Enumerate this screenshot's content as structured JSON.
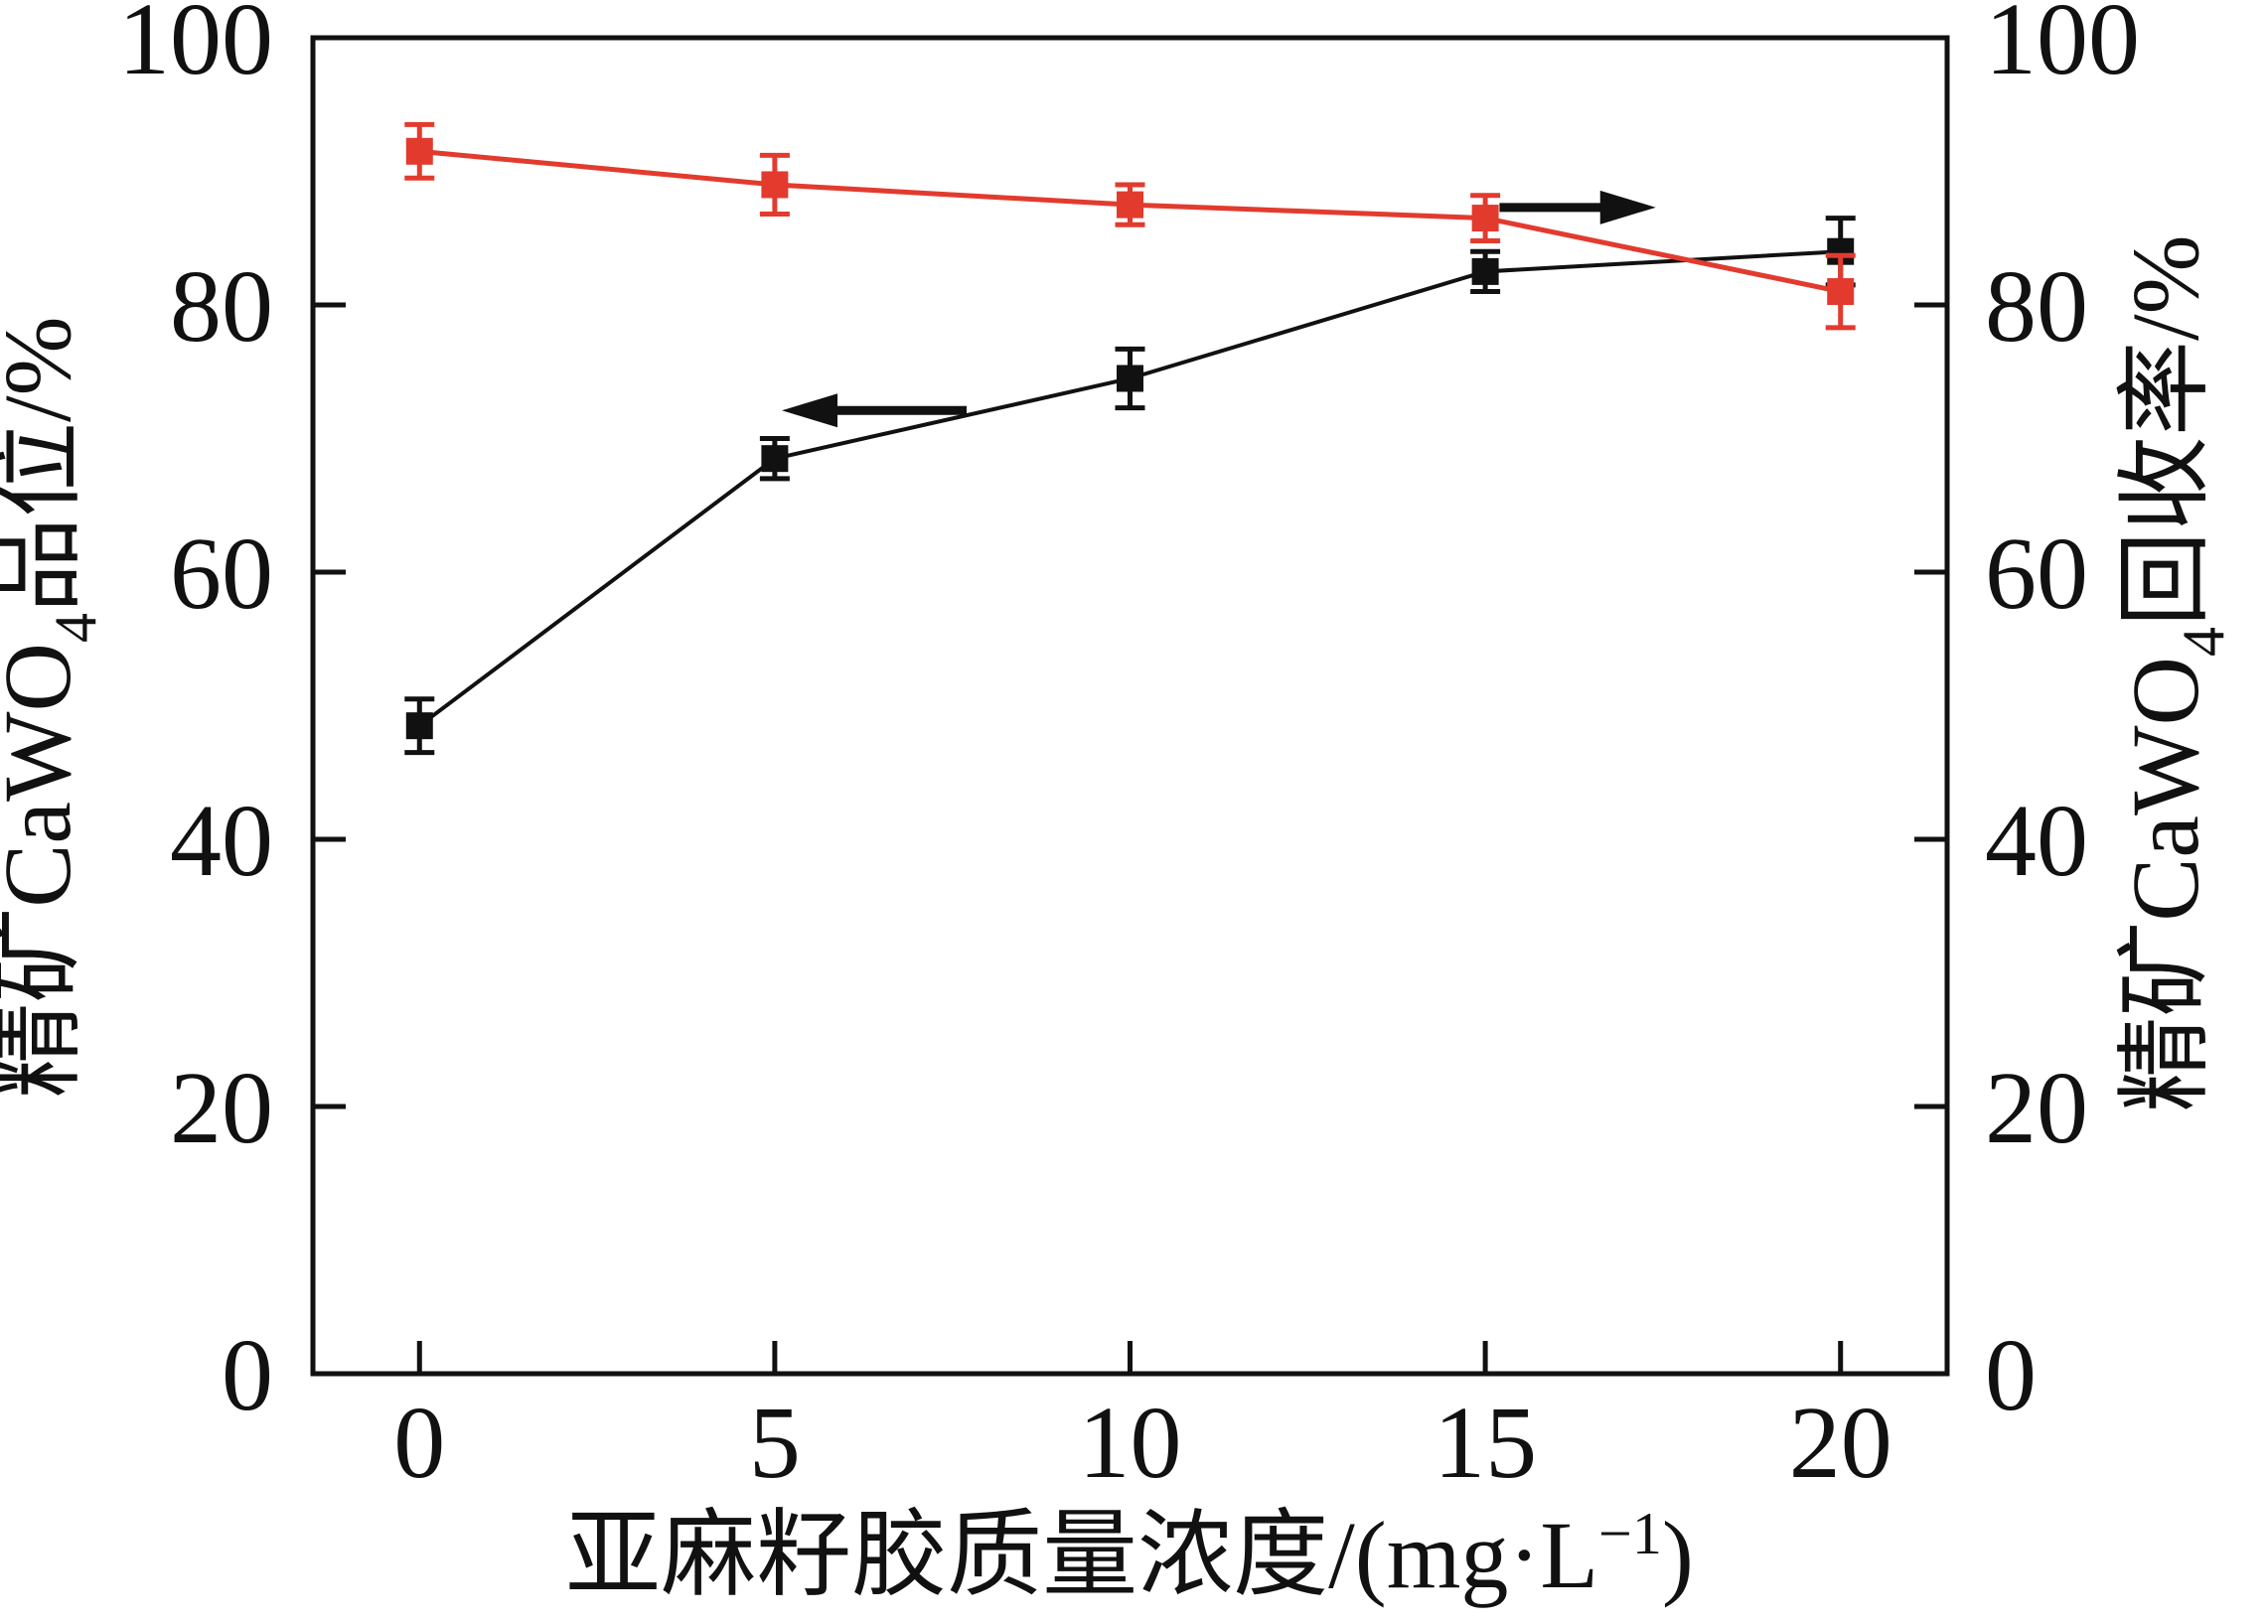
{
  "figure": {
    "background": "#ffffff",
    "frame_color": "#111111"
  },
  "chart_data": {
    "type": "line",
    "title": "",
    "grid": false,
    "legend": "none",
    "xlabel": "亚麻籽胶质量浓度/(mg·L⁻¹)",
    "xlabel_parts": [
      {
        "t": "亚麻籽胶质量浓度/(mg·L"
      },
      {
        "t": "−1",
        "shift": "sup"
      },
      {
        "t": ")"
      }
    ],
    "xlim": [
      -1.5,
      21.5
    ],
    "ylim": [
      0,
      100
    ],
    "x_ticks": [
      0,
      5,
      10,
      15,
      20
    ],
    "y_ticks": [
      0,
      20,
      40,
      60,
      80,
      100
    ],
    "left_axis": {
      "label": "精矿CaWO₄品位/%",
      "label_parts": [
        {
          "t": "精矿CaWO"
        },
        {
          "t": "4",
          "shift": "sub"
        },
        {
          "t": "品位/%"
        }
      ],
      "range": [
        0,
        100
      ]
    },
    "right_axis": {
      "label": "精矿CaWO₄回收率/%",
      "label_parts": [
        {
          "t": "精矿CaWO"
        },
        {
          "t": "4",
          "shift": "sub"
        },
        {
          "t": "回收率/%"
        }
      ],
      "range": [
        0,
        100
      ]
    },
    "series": [
      {
        "name": "精矿CaWO₄品位",
        "axis": "left",
        "color": "#111111",
        "marker": "filled-square",
        "x": [
          0,
          5,
          10,
          15,
          20
        ],
        "values": [
          48.5,
          68.5,
          74.5,
          82.5,
          84.0
        ],
        "errors": [
          2.0,
          1.5,
          2.2,
          1.5,
          2.5
        ]
      },
      {
        "name": "精矿CaWO₄回收率",
        "axis": "right",
        "color": "#e23b2e",
        "marker": "filled-square",
        "x": [
          0,
          5,
          10,
          15,
          20
        ],
        "values": [
          91.5,
          89.0,
          87.5,
          86.5,
          81.0
        ],
        "errors": [
          2.0,
          2.2,
          1.5,
          1.7,
          2.7
        ]
      }
    ],
    "annotations": [
      {
        "id": "left-axis-arrow",
        "type": "arrow",
        "direction": "left",
        "color": "#111111",
        "x_tip": 5.1,
        "x_tail": 7.7,
        "y": 72.1
      },
      {
        "id": "right-axis-arrow",
        "type": "arrow",
        "direction": "right",
        "color": "#111111",
        "x_tip": 17.4,
        "x_tail": 15.2,
        "y": 87.3
      }
    ]
  }
}
